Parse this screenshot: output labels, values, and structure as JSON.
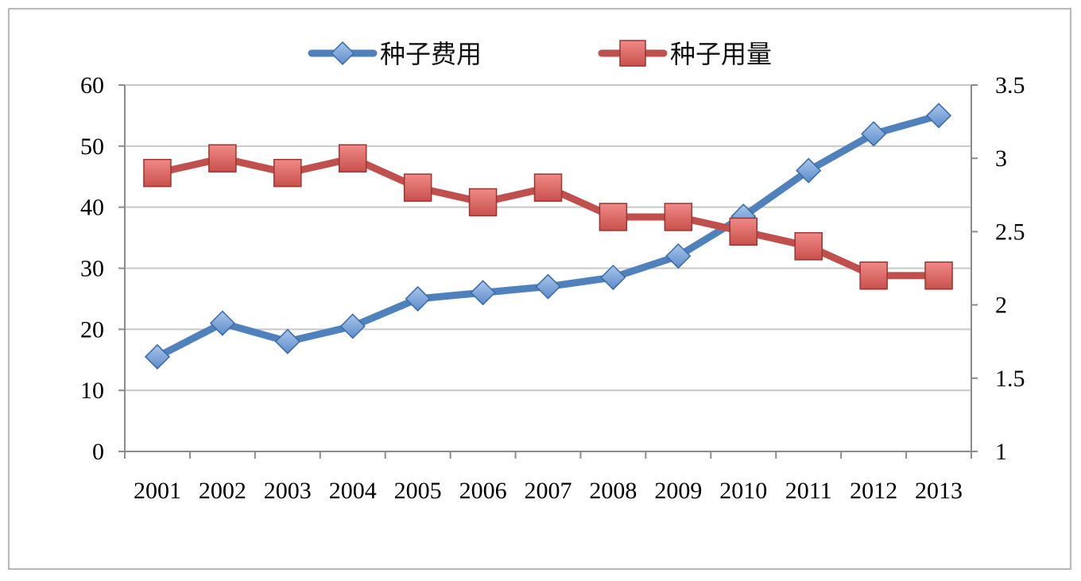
{
  "chart_data": {
    "type": "line",
    "categories": [
      "2001",
      "2002",
      "2003",
      "2004",
      "2005",
      "2006",
      "2007",
      "2008",
      "2009",
      "2010",
      "2011",
      "2012",
      "2013"
    ],
    "series": [
      {
        "name": "种子费用",
        "axis": "left",
        "color": "#4f81bd",
        "marker": "diamond",
        "values": [
          15.5,
          21,
          18,
          20.5,
          25,
          26,
          27,
          28.5,
          32,
          38.5,
          46,
          52,
          55
        ]
      },
      {
        "name": "种子用量",
        "axis": "right",
        "color": "#c0504d",
        "marker": "square",
        "values": [
          2.9,
          3.0,
          2.9,
          3.0,
          2.8,
          2.7,
          2.8,
          2.6,
          2.6,
          2.5,
          2.4,
          2.2,
          2.2
        ]
      }
    ],
    "y_left": {
      "min": 0,
      "max": 60,
      "ticks": [
        "0",
        "10",
        "20",
        "30",
        "40",
        "50",
        "60"
      ]
    },
    "y_right": {
      "min": 1,
      "max": 3.5,
      "ticks": [
        "1",
        "1.5",
        "2",
        "2.5",
        "3",
        "3.5"
      ]
    },
    "grid": true,
    "legend": "top"
  }
}
